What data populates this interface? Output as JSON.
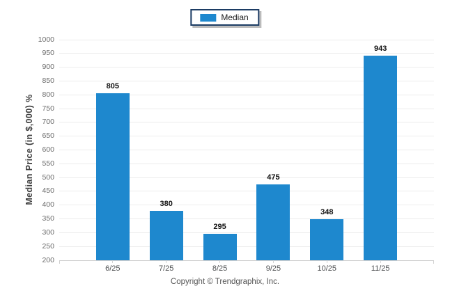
{
  "legend": {
    "label": "Median",
    "swatch_color": "#1e88ce"
  },
  "y_axis_title": "Median Price (in $,000) %",
  "footer": "Copyright © Trendgraphix, Inc.",
  "colors": {
    "bar": "#1e88ce",
    "gridline": "#ececec",
    "axis_line": "#cfcfcf",
    "legend_border": "#1c3c64"
  },
  "chart_data": {
    "type": "bar",
    "title": "",
    "categories": [
      "6/25",
      "7/25",
      "8/25",
      "9/25",
      "10/25",
      "11/25"
    ],
    "series": [
      {
        "name": "Median",
        "values": [
          805,
          380,
          295,
          475,
          348,
          943
        ]
      }
    ],
    "xlabel": "",
    "ylabel": "Median Price (in $,000) %",
    "ylim": [
      200,
      1000
    ],
    "ytick_step": 50,
    "yticks": [
      1000,
      950,
      900,
      850,
      800,
      750,
      700,
      650,
      600,
      550,
      500,
      450,
      400,
      350,
      300,
      250,
      200
    ],
    "grid": "horizontal",
    "legend_position": "top-center",
    "bar_color": "#1e88ce",
    "value_labels_shown": true
  }
}
